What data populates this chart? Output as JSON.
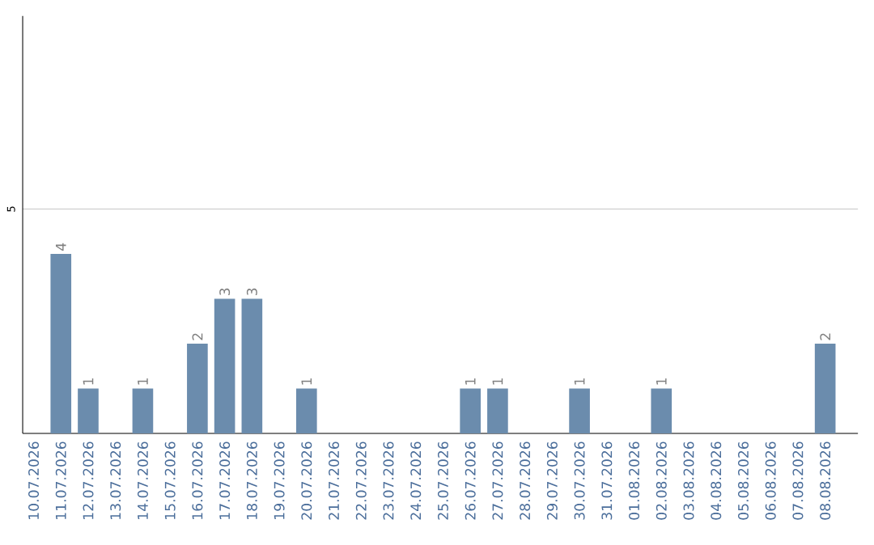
{
  "chart_data": {
    "type": "bar",
    "categories": [
      "10.07.2026",
      "11.07.2026",
      "12.07.2026",
      "13.07.2026",
      "14.07.2026",
      "15.07.2026",
      "16.07.2026",
      "17.07.2026",
      "18.07.2026",
      "19.07.2026",
      "20.07.2026",
      "21.07.2026",
      "22.07.2026",
      "23.07.2026",
      "24.07.2026",
      "25.07.2026",
      "26.07.2026",
      "27.07.2026",
      "28.07.2026",
      "29.07.2026",
      "30.07.2026",
      "31.07.2026",
      "01.08.2026",
      "02.08.2026",
      "03.08.2026",
      "04.08.2026",
      "05.08.2026",
      "06.08.2026",
      "07.08.2026",
      "08.08.2026"
    ],
    "values": [
      0,
      4,
      1,
      0,
      1,
      0,
      2,
      3,
      3,
      0,
      1,
      0,
      0,
      0,
      0,
      0,
      1,
      1,
      0,
      0,
      1,
      0,
      0,
      1,
      0,
      0,
      0,
      0,
      0,
      2
    ],
    "value_labels": [
      null,
      "4",
      "1",
      null,
      "1",
      null,
      "2",
      "3",
      "3",
      null,
      "1",
      null,
      null,
      null,
      null,
      null,
      "1",
      "1",
      null,
      null,
      "1",
      null,
      null,
      "1",
      null,
      null,
      null,
      null,
      null,
      "2"
    ],
    "color": "#6b8cad",
    "ylim": [
      0,
      9.3
    ],
    "yticks": [
      5
    ],
    "grid": "y"
  }
}
